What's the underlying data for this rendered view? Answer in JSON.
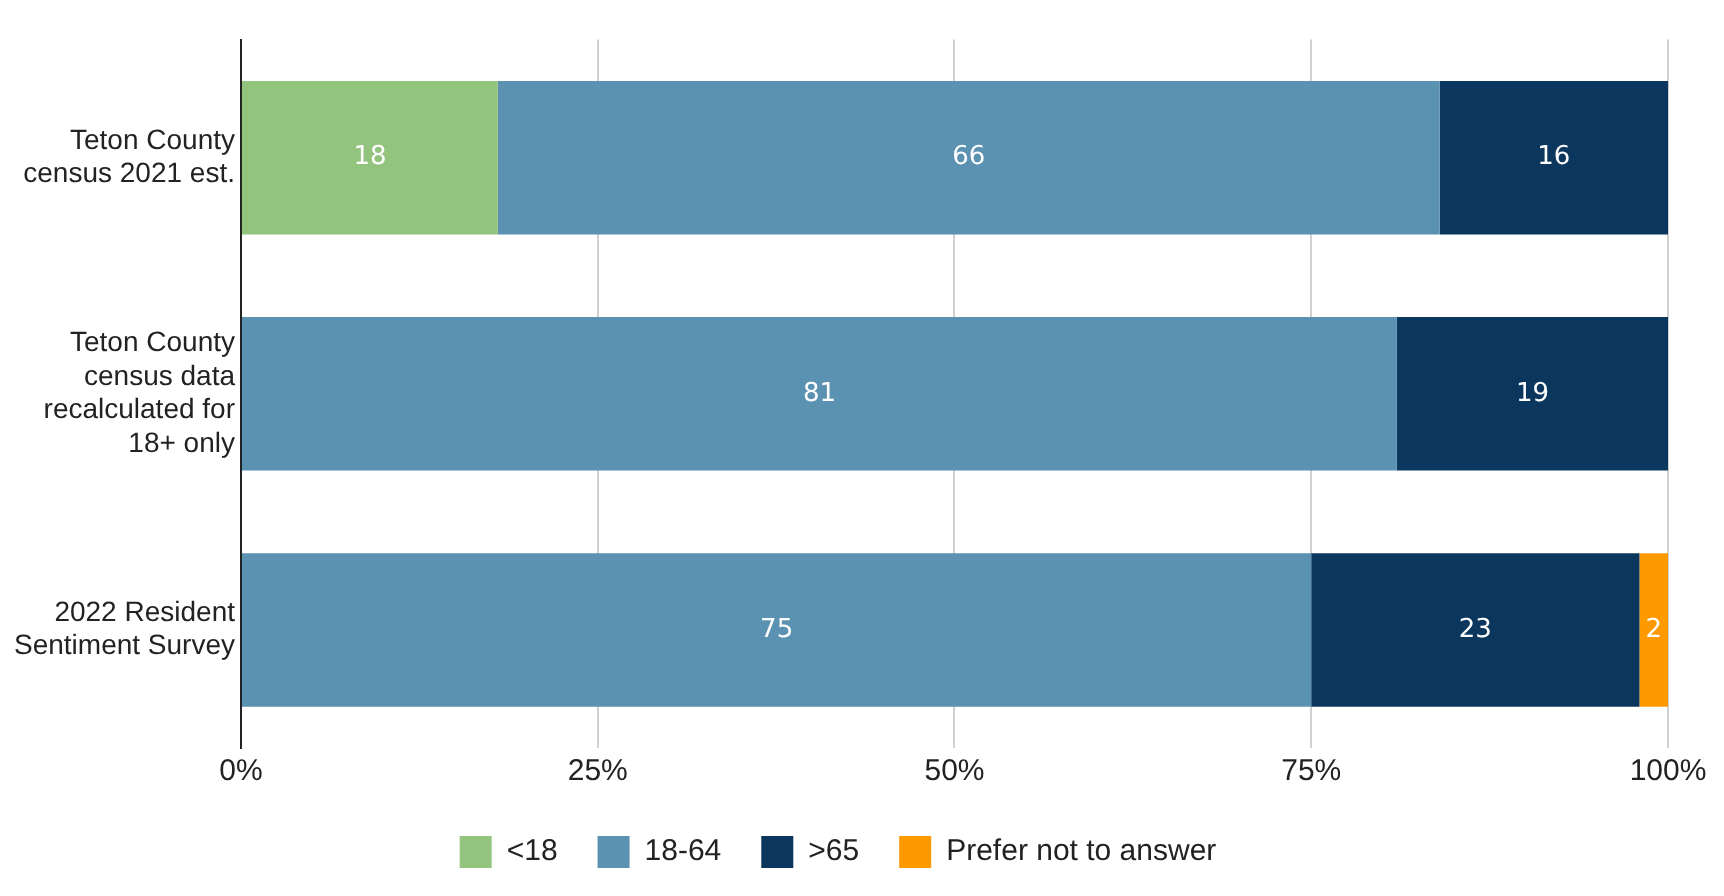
{
  "chart_data": {
    "type": "bar",
    "orientation": "horizontal",
    "stacked": true,
    "categories": [
      "Teton County census 2021 est.",
      "Teton County census data recalculated for 18+ only",
      "2022 Resident Sentiment Survey"
    ],
    "series": [
      {
        "name": "<18",
        "color": "#93c47d",
        "values": [
          18,
          null,
          null
        ]
      },
      {
        "name": "18-64",
        "color": "#5b92b2",
        "values": [
          66,
          81,
          75
        ]
      },
      {
        "name": ">65",
        "color": "#0b365d",
        "values": [
          16,
          19,
          23
        ]
      },
      {
        "name": "Prefer not to answer",
        "color": "#ff9900",
        "values": [
          null,
          null,
          2
        ]
      }
    ],
    "xlim": [
      0,
      100
    ],
    "xticks": [
      {
        "value": 0,
        "label": "0%"
      },
      {
        "value": 25,
        "label": "25%"
      },
      {
        "value": 50,
        "label": "50%"
      },
      {
        "value": 75,
        "label": "75%"
      },
      {
        "value": 100,
        "label": "100%"
      }
    ],
    "grid": "x",
    "legend": "bottom",
    "data_labels": true
  }
}
